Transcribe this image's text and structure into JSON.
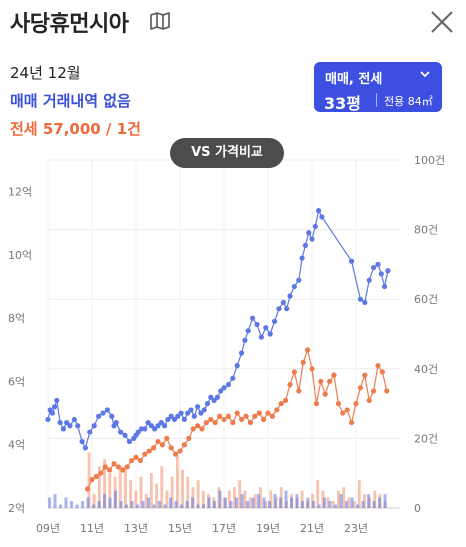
{
  "header": {
    "title": "사당휴먼시아",
    "map_icon": "map-icon",
    "close_icon": "close-icon"
  },
  "summary": {
    "date": "24년 12월",
    "trade_text": "매매 거래내역 없음",
    "jeonse_text": "전세 57,000 / 1건"
  },
  "selector": {
    "type": "매매, 전세",
    "pyeong": "33평",
    "area": "전용 84㎡"
  },
  "vs_button": "VS 가격비교",
  "colors": {
    "trade": "#5c77e6",
    "jeonse": "#ee7b4c",
    "accent": "#3d4fe0",
    "button_dark": "#4c4c4c"
  },
  "chart_data": {
    "type": "line",
    "x_ticks": [
      "09년",
      "11년",
      "13년",
      "15년",
      "17년",
      "19년",
      "21년",
      "23년"
    ],
    "xlim": [
      2009.0,
      2025.0
    ],
    "left_axis": {
      "ticks": [
        "2억",
        "4억",
        "6억",
        "8억",
        "10억",
        "12억"
      ],
      "ylim": [
        2,
        13
      ]
    },
    "right_axis": {
      "ticks": [
        "0",
        "20건",
        "40건",
        "60건",
        "80건",
        "100건"
      ],
      "ylim": [
        0,
        100
      ]
    },
    "grid": true,
    "series": [
      {
        "kind": "line",
        "axis": "left",
        "color": "#5c77e6",
        "points": [
          [
            2009.0,
            4.8
          ],
          [
            2009.1,
            5.1
          ],
          [
            2009.2,
            5.0
          ],
          [
            2009.3,
            5.2
          ],
          [
            2009.4,
            5.4
          ],
          [
            2009.55,
            4.7
          ],
          [
            2009.7,
            4.5
          ],
          [
            2009.85,
            4.7
          ],
          [
            2010.0,
            4.6
          ],
          [
            2010.2,
            4.8
          ],
          [
            2010.35,
            4.6
          ],
          [
            2010.55,
            4.1
          ],
          [
            2010.7,
            3.9
          ],
          [
            2010.9,
            4.4
          ],
          [
            2011.1,
            4.6
          ],
          [
            2011.3,
            4.9
          ],
          [
            2011.5,
            5.0
          ],
          [
            2011.7,
            5.1
          ],
          [
            2011.9,
            4.9
          ],
          [
            2012.0,
            4.6
          ],
          [
            2012.1,
            4.7
          ],
          [
            2012.3,
            4.4
          ],
          [
            2012.5,
            4.3
          ],
          [
            2012.7,
            4.1
          ],
          [
            2012.9,
            4.2
          ],
          [
            2013.0,
            4.3
          ],
          [
            2013.1,
            4.4
          ],
          [
            2013.25,
            4.5
          ],
          [
            2013.4,
            4.5
          ],
          [
            2013.55,
            4.7
          ],
          [
            2013.7,
            4.6
          ],
          [
            2013.85,
            4.5
          ],
          [
            2014.0,
            4.6
          ],
          [
            2014.15,
            4.7
          ],
          [
            2014.3,
            4.6
          ],
          [
            2014.45,
            4.8
          ],
          [
            2014.6,
            4.9
          ],
          [
            2014.75,
            4.8
          ],
          [
            2014.9,
            4.9
          ],
          [
            2015.05,
            5.0
          ],
          [
            2015.2,
            4.8
          ],
          [
            2015.35,
            5.0
          ],
          [
            2015.5,
            5.1
          ],
          [
            2015.65,
            4.9
          ],
          [
            2015.8,
            5.2
          ],
          [
            2015.95,
            5.0
          ],
          [
            2016.1,
            5.1
          ],
          [
            2016.25,
            5.3
          ],
          [
            2016.4,
            5.5
          ],
          [
            2016.55,
            5.4
          ],
          [
            2016.7,
            5.5
          ],
          [
            2016.85,
            5.7
          ],
          [
            2017.0,
            5.8
          ],
          [
            2017.2,
            5.9
          ],
          [
            2017.4,
            6.1
          ],
          [
            2017.6,
            6.5
          ],
          [
            2017.8,
            6.9
          ],
          [
            2017.95,
            7.3
          ],
          [
            2018.1,
            7.6
          ],
          [
            2018.3,
            8.0
          ],
          [
            2018.5,
            7.8
          ],
          [
            2018.7,
            7.4
          ],
          [
            2018.9,
            7.7
          ],
          [
            2019.1,
            7.5
          ],
          [
            2019.3,
            7.9
          ],
          [
            2019.5,
            8.3
          ],
          [
            2019.7,
            8.5
          ],
          [
            2019.85,
            8.3
          ],
          [
            2020.0,
            8.7
          ],
          [
            2020.2,
            9.0
          ],
          [
            2020.4,
            9.2
          ],
          [
            2020.55,
            9.9
          ],
          [
            2020.7,
            10.3
          ],
          [
            2020.85,
            10.7
          ],
          [
            2021.0,
            10.5
          ],
          [
            2021.15,
            10.9
          ],
          [
            2021.3,
            11.4
          ],
          [
            2021.45,
            11.2
          ],
          [
            2022.8,
            9.8
          ],
          [
            2023.2,
            8.6
          ],
          [
            2023.4,
            8.5
          ],
          [
            2023.6,
            9.2
          ],
          [
            2023.8,
            9.6
          ],
          [
            2024.0,
            9.7
          ],
          [
            2024.15,
            9.4
          ],
          [
            2024.3,
            9.0
          ],
          [
            2024.45,
            9.5
          ]
        ]
      },
      {
        "kind": "line",
        "axis": "left",
        "color": "#ee7b4c",
        "points": [
          [
            2010.8,
            2.6
          ],
          [
            2011.0,
            2.9
          ],
          [
            2011.2,
            3.0
          ],
          [
            2011.4,
            3.1
          ],
          [
            2011.6,
            3.3
          ],
          [
            2011.8,
            3.2
          ],
          [
            2012.0,
            3.4
          ],
          [
            2012.2,
            3.3
          ],
          [
            2012.4,
            3.2
          ],
          [
            2012.6,
            3.3
          ],
          [
            2012.8,
            3.5
          ],
          [
            2013.0,
            3.6
          ],
          [
            2013.2,
            3.5
          ],
          [
            2013.4,
            3.7
          ],
          [
            2013.6,
            3.8
          ],
          [
            2013.8,
            3.9
          ],
          [
            2014.0,
            4.1
          ],
          [
            2014.2,
            4.0
          ],
          [
            2014.4,
            4.2
          ],
          [
            2014.6,
            3.9
          ],
          [
            2014.8,
            3.7
          ],
          [
            2015.0,
            3.8
          ],
          [
            2015.2,
            4.0
          ],
          [
            2015.4,
            4.2
          ],
          [
            2015.6,
            4.5
          ],
          [
            2015.8,
            4.6
          ],
          [
            2016.0,
            4.5
          ],
          [
            2016.2,
            4.7
          ],
          [
            2016.4,
            4.8
          ],
          [
            2016.6,
            4.7
          ],
          [
            2016.8,
            4.9
          ],
          [
            2017.0,
            4.8
          ],
          [
            2017.2,
            4.9
          ],
          [
            2017.4,
            4.7
          ],
          [
            2017.6,
            5.0
          ],
          [
            2017.8,
            4.8
          ],
          [
            2018.0,
            4.9
          ],
          [
            2018.2,
            4.7
          ],
          [
            2018.4,
            4.9
          ],
          [
            2018.6,
            5.0
          ],
          [
            2018.8,
            4.8
          ],
          [
            2019.0,
            5.0
          ],
          [
            2019.2,
            4.9
          ],
          [
            2019.4,
            5.1
          ],
          [
            2019.6,
            5.3
          ],
          [
            2019.8,
            5.4
          ],
          [
            2020.0,
            5.9
          ],
          [
            2020.2,
            6.3
          ],
          [
            2020.4,
            5.7
          ],
          [
            2020.6,
            6.6
          ],
          [
            2020.8,
            7.0
          ],
          [
            2021.0,
            6.4
          ],
          [
            2021.2,
            5.3
          ],
          [
            2021.4,
            6.0
          ],
          [
            2021.6,
            5.6
          ],
          [
            2021.8,
            6.0
          ],
          [
            2022.0,
            6.2
          ],
          [
            2022.2,
            5.3
          ],
          [
            2022.4,
            5.0
          ],
          [
            2022.6,
            5.1
          ],
          [
            2022.8,
            4.7
          ],
          [
            2023.0,
            5.3
          ],
          [
            2023.2,
            5.8
          ],
          [
            2023.4,
            6.2
          ],
          [
            2023.6,
            5.4
          ],
          [
            2023.8,
            5.7
          ],
          [
            2024.0,
            6.5
          ],
          [
            2024.2,
            6.3
          ],
          [
            2024.4,
            5.7
          ]
        ]
      },
      {
        "kind": "bar",
        "axis": "right",
        "color": "#ee7b4c",
        "opacity": 0.45,
        "x_start": 2010.8,
        "x_end": 2024.5,
        "count": 58,
        "values": [
          16,
          4,
          12,
          14,
          10,
          9,
          12,
          11,
          8,
          5,
          9,
          4,
          10,
          7,
          12,
          5,
          9,
          15,
          11,
          9,
          6,
          8,
          5,
          4,
          3,
          6,
          3,
          5,
          6,
          8,
          5,
          3,
          4,
          6,
          2,
          5,
          3,
          6,
          2,
          4,
          3,
          5,
          2,
          4,
          8,
          5,
          3,
          2,
          5,
          6,
          3,
          2,
          8,
          4,
          3,
          5,
          4,
          2
        ]
      },
      {
        "kind": "bar",
        "axis": "right",
        "color": "#5c77e6",
        "opacity": 0.55,
        "x_start": 2009.0,
        "x_end": 2024.5,
        "count": 62,
        "values": [
          3,
          4,
          1,
          3,
          2,
          1,
          2,
          3,
          1,
          2,
          4,
          3,
          5,
          2,
          1,
          2,
          1,
          2,
          3,
          1,
          2,
          1,
          3,
          2,
          1,
          2,
          3,
          1,
          1,
          3,
          2,
          5,
          3,
          2,
          3,
          4,
          2,
          3,
          4,
          3,
          2,
          4,
          3,
          5,
          3,
          4,
          2,
          3,
          2,
          1,
          3,
          2,
          1,
          4,
          2,
          3,
          1,
          2,
          4,
          2,
          3,
          4
        ]
      }
    ]
  }
}
